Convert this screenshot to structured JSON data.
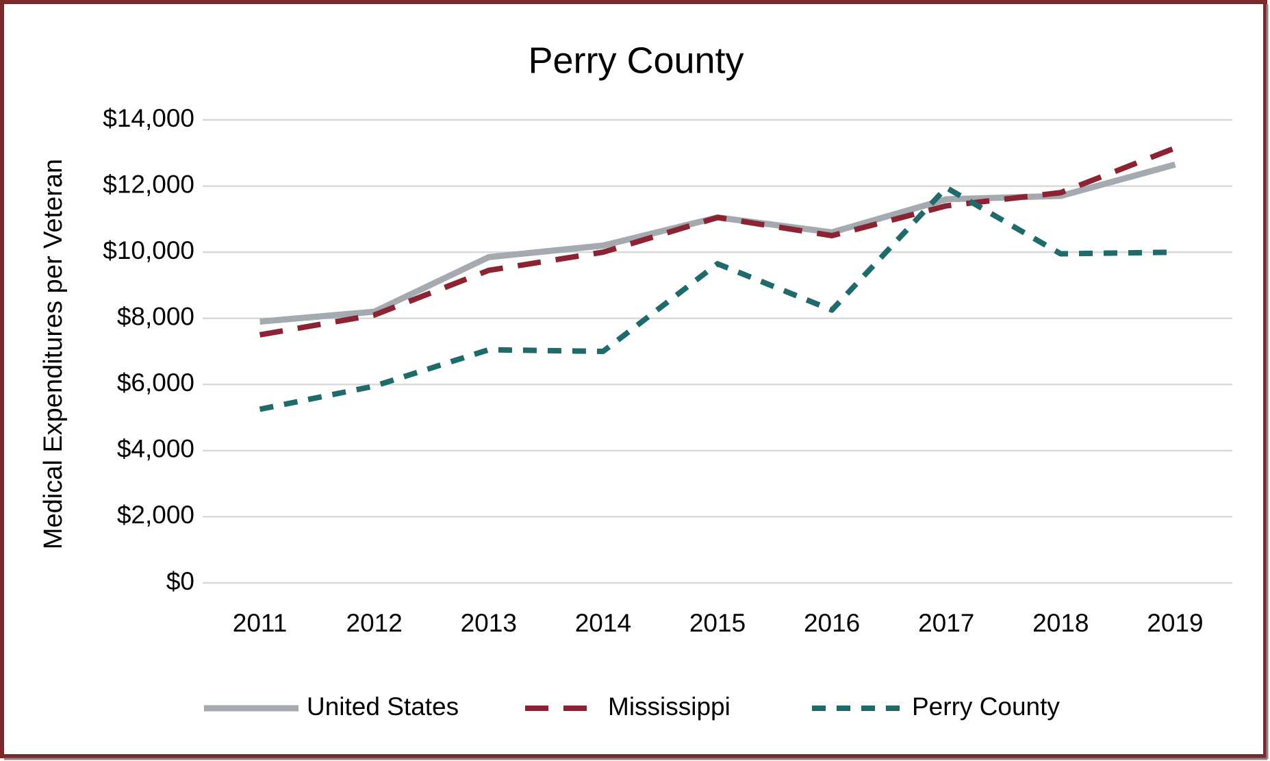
{
  "chart_data": {
    "type": "line",
    "title": "Perry County",
    "y_label": "Medical Expenditures per Veteran",
    "categories": [
      "2011",
      "2012",
      "2013",
      "2014",
      "2015",
      "2016",
      "2017",
      "2018",
      "2019"
    ],
    "series": [
      {
        "name": "United States",
        "color": "#a5a9b0",
        "values": [
          7900,
          8200,
          9850,
          10200,
          11050,
          10600,
          11600,
          11700,
          12650
        ]
      },
      {
        "name": "Mississippi",
        "color": "#8b2332",
        "values": [
          7500,
          8100,
          9450,
          10000,
          11050,
          10500,
          11400,
          11800,
          13150
        ]
      },
      {
        "name": "Perry County",
        "color": "#1f6b6b",
        "values": [
          5250,
          5950,
          7050,
          7000,
          9650,
          8250,
          11950,
          9950,
          10000
        ]
      }
    ],
    "ylim": [
      0,
      14000
    ],
    "yticks": [
      {
        "value": 0,
        "label": "$0"
      },
      {
        "value": 2000,
        "label": "$2,000"
      },
      {
        "value": 4000,
        "label": "$4,000"
      },
      {
        "value": 6000,
        "label": "$6,000"
      },
      {
        "value": 8000,
        "label": "$8,000"
      },
      {
        "value": 10000,
        "label": "$10,000"
      },
      {
        "value": 12000,
        "label": "$12,000"
      },
      {
        "value": 14000,
        "label": "$14,000"
      }
    ],
    "grid": true,
    "legend": "bottom"
  }
}
